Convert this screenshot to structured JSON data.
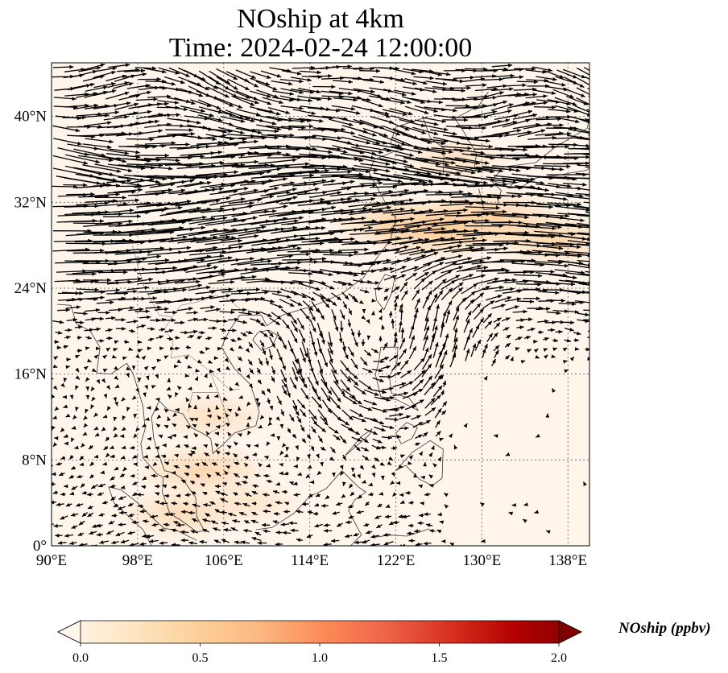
{
  "title_line1": "NOship at 4km",
  "title_line2": "Time: 2024-02-24 12:00:00",
  "map": {
    "lon_range": [
      90,
      140
    ],
    "lat_range": [
      0,
      45
    ],
    "lon_ticks": [
      90,
      98,
      106,
      114,
      122,
      130,
      138
    ],
    "lat_ticks": [
      0,
      8,
      16,
      24,
      32,
      40
    ],
    "lon_tick_labels": [
      "90°E",
      "98°E",
      "106°E",
      "114°E",
      "122°E",
      "130°E",
      "138°E"
    ],
    "lat_tick_labels": [
      "0°",
      "8°N",
      "16°N",
      "24°N",
      "32°N",
      "40°N"
    ],
    "gridlines": true,
    "background_color": "#fff5eb",
    "plume_color": "#fdd49e",
    "vector_color": "#000000",
    "coastline_color": "#333333",
    "plumes": [
      {
        "lon": 126.0,
        "lat": 29.5,
        "value": 0.45
      },
      {
        "lon": 131.0,
        "lat": 30.5,
        "value": 0.4
      },
      {
        "lon": 137.0,
        "lat": 28.5,
        "value": 0.35
      },
      {
        "lon": 121.5,
        "lat": 30.0,
        "value": 0.3
      },
      {
        "lon": 104.0,
        "lat": 7.0,
        "value": 0.35
      },
      {
        "lon": 102.0,
        "lat": 3.0,
        "value": 0.3
      },
      {
        "lon": 105.0,
        "lat": 12.0,
        "value": 0.25
      },
      {
        "lon": 127.5,
        "lat": 36.0,
        "value": 0.25
      },
      {
        "lon": 108.5,
        "lat": 4.0,
        "value": 0.2
      }
    ]
  },
  "colorbar": {
    "label": "NOship (ppbv)",
    "ticks": [
      0.0,
      0.5,
      1.0,
      1.5,
      2.0
    ],
    "tick_labels": [
      "0.0",
      "0.5",
      "1.0",
      "1.5",
      "2.0"
    ],
    "range": [
      0,
      2
    ],
    "colormap": "OrRd",
    "colors": [
      "#fff7ec",
      "#fee8c8",
      "#fdd49e",
      "#fdbb84",
      "#fc8d59",
      "#ef6548",
      "#d7301f",
      "#b30000",
      "#7f0000"
    ],
    "extend": "both"
  }
}
